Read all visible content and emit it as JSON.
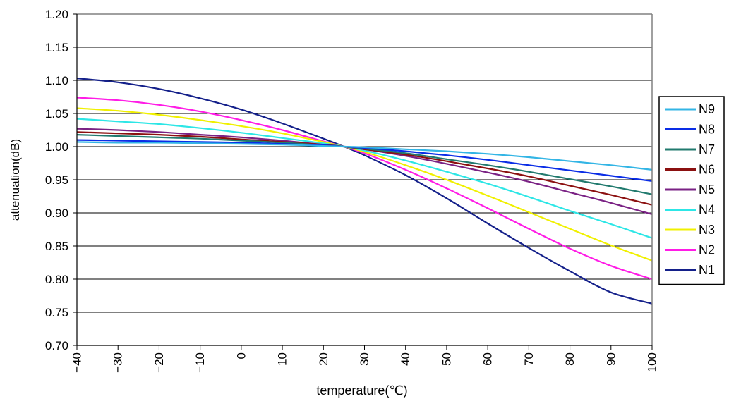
{
  "chart_data": {
    "type": "line",
    "xlabel": "temperature(℃)",
    "ylabel": "attenuation(dB)",
    "xlim": [
      -40,
      100
    ],
    "ylim": [
      0.7,
      1.2
    ],
    "x_ticks": [
      -40,
      -30,
      -20,
      -10,
      0,
      10,
      20,
      30,
      40,
      50,
      60,
      70,
      80,
      90,
      100
    ],
    "y_ticks": [
      0.7,
      0.75,
      0.8,
      0.85,
      0.9,
      0.95,
      1.0,
      1.05,
      1.1,
      1.15,
      1.2
    ],
    "y_tick_labels": [
      "0.70",
      "0.75",
      "0.80",
      "0.85",
      "0.90",
      "0.95",
      "1.00",
      "1.05",
      "1.10",
      "1.15",
      "1.20"
    ],
    "grid": "horizontal",
    "legend_position": "right",
    "x": [
      -40,
      -30,
      -20,
      -10,
      0,
      10,
      20,
      25,
      30,
      40,
      50,
      60,
      70,
      80,
      90,
      100
    ],
    "series": [
      {
        "name": "N9",
        "color": "#33b5e5",
        "values": [
          1.007,
          1.006,
          1.006,
          1.005,
          1.004,
          1.003,
          1.001,
          1.0,
          0.999,
          0.996,
          0.993,
          0.989,
          0.984,
          0.978,
          0.972,
          0.965
        ]
      },
      {
        "name": "N8",
        "color": "#0a2de6",
        "values": [
          1.01,
          1.009,
          1.008,
          1.007,
          1.006,
          1.004,
          1.002,
          1.0,
          0.998,
          0.993,
          0.987,
          0.98,
          0.972,
          0.964,
          0.956,
          0.948
        ]
      },
      {
        "name": "N7",
        "color": "#217a6e",
        "values": [
          1.018,
          1.016,
          1.014,
          1.012,
          1.009,
          1.006,
          1.002,
          1.0,
          0.997,
          0.99,
          0.981,
          0.972,
          0.962,
          0.951,
          0.94,
          0.928
        ]
      },
      {
        "name": "N6",
        "color": "#8b1010",
        "values": [
          1.022,
          1.02,
          1.018,
          1.015,
          1.011,
          1.007,
          1.003,
          1.0,
          0.996,
          0.988,
          0.978,
          0.967,
          0.955,
          0.941,
          0.927,
          0.912
        ]
      },
      {
        "name": "N5",
        "color": "#7a2284",
        "values": [
          1.027,
          1.025,
          1.022,
          1.018,
          1.014,
          1.009,
          1.003,
          1.0,
          0.996,
          0.986,
          0.974,
          0.961,
          0.947,
          0.931,
          0.915,
          0.898
        ]
      },
      {
        "name": "N4",
        "color": "#2de6e6",
        "values": [
          1.042,
          1.038,
          1.034,
          1.028,
          1.021,
          1.013,
          1.005,
          1.0,
          0.994,
          0.979,
          0.962,
          0.944,
          0.924,
          0.903,
          0.883,
          0.862
        ]
      },
      {
        "name": "N3",
        "color": "#f0f000",
        "values": [
          1.058,
          1.054,
          1.048,
          1.04,
          1.031,
          1.02,
          1.007,
          1.0,
          0.992,
          0.972,
          0.95,
          0.926,
          0.901,
          0.876,
          0.851,
          0.828
        ]
      },
      {
        "name": "N2",
        "color": "#ff1ce6",
        "values": [
          1.074,
          1.07,
          1.063,
          1.053,
          1.04,
          1.025,
          1.008,
          1.0,
          0.99,
          0.965,
          0.937,
          0.907,
          0.876,
          0.846,
          0.82,
          0.8
        ]
      },
      {
        "name": "N1",
        "color": "#14208a",
        "values": [
          1.103,
          1.097,
          1.087,
          1.073,
          1.056,
          1.035,
          1.012,
          1.0,
          0.987,
          0.957,
          0.922,
          0.884,
          0.847,
          0.812,
          0.78,
          0.763
        ]
      }
    ]
  }
}
